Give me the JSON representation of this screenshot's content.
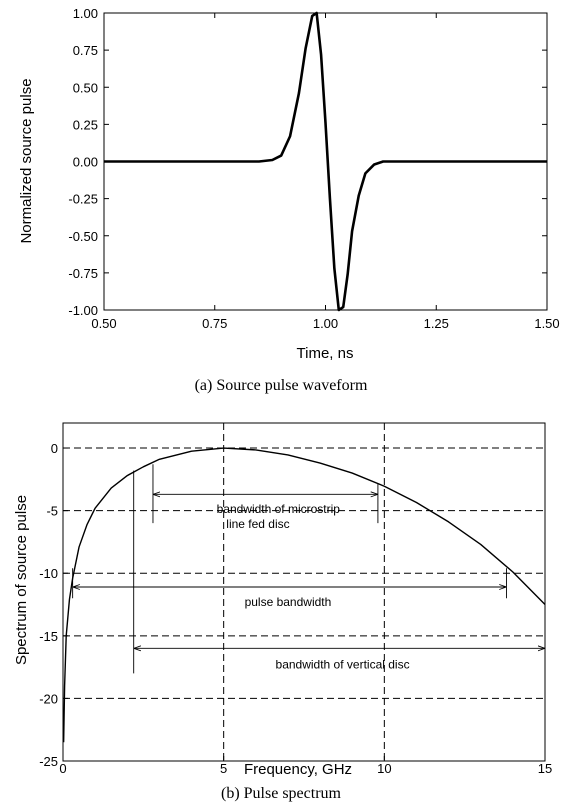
{
  "chart_data": [
    {
      "type": "line",
      "xlabel": "Time, ns",
      "ylabel": "Normalized source pulse",
      "caption": "(a) Source pulse waveform",
      "xlim": [
        0.5,
        1.5
      ],
      "ylim": [
        -1.0,
        1.0
      ],
      "x_ticks": [
        "0.50",
        "0.75",
        "1.00",
        "1.25",
        "1.50"
      ],
      "y_ticks": [
        "1.00",
        "0.75",
        "0.50",
        "0.25",
        "0.00",
        "-0.25",
        "-0.50",
        "-0.75",
        "-1.00"
      ],
      "grid": false,
      "series": [
        {
          "x": [
            0.5,
            0.85,
            0.88,
            0.9,
            0.92,
            0.94,
            0.955,
            0.97,
            0.98,
            0.99,
            1.0,
            1.01,
            1.02,
            1.03,
            1.04,
            1.05,
            1.06,
            1.075,
            1.09,
            1.11,
            1.13,
            1.5
          ],
          "y": [
            0.0,
            0.0,
            0.01,
            0.04,
            0.17,
            0.46,
            0.76,
            0.98,
            1.0,
            0.72,
            0.26,
            -0.25,
            -0.72,
            -1.0,
            -0.98,
            -0.76,
            -0.47,
            -0.23,
            -0.08,
            -0.02,
            0.0,
            0.0
          ]
        }
      ]
    },
    {
      "type": "line",
      "xlabel": "Frequency, GHz",
      "ylabel": "Spectrum of source pulse",
      "caption": "(b) Pulse spectrum",
      "xlim": [
        0,
        15
      ],
      "ylim": [
        -25,
        2
      ],
      "x_ticks": [
        "0",
        "5",
        "10",
        "15"
      ],
      "y_ticks": [
        "0",
        "-5",
        "-10",
        "-15",
        "-20",
        "-25"
      ],
      "grid": "dashed",
      "series": [
        {
          "x": [
            0.02,
            0.05,
            0.1,
            0.2,
            0.3,
            0.5,
            0.75,
            1.0,
            1.5,
            2.0,
            2.5,
            3.0,
            4.0,
            5.0,
            6.0,
            7.0,
            8.0,
            9.0,
            10.0,
            11.0,
            12.0,
            13.0,
            14.0,
            15.0
          ],
          "y": [
            -23.5,
            -19.0,
            -15.0,
            -12.1,
            -10.4,
            -7.9,
            -6.1,
            -4.8,
            -3.2,
            -2.2,
            -1.5,
            -0.9,
            -0.25,
            0.0,
            -0.15,
            -0.55,
            -1.2,
            -2.0,
            -3.05,
            -4.35,
            -5.9,
            -7.7,
            -9.9,
            -12.5
          ]
        }
      ],
      "annotations": [
        {
          "text": "bandwidth of microstrip line fed disc",
          "x_range": [
            2.8,
            9.8
          ],
          "y": -3.7
        },
        {
          "text": "pulse bandwidth",
          "x_range": [
            0.3,
            13.8
          ],
          "y": -11.1
        },
        {
          "text": "bandwidth of vertical disc",
          "x_range": [
            2.2,
            15
          ],
          "y": -16.0
        }
      ]
    }
  ]
}
